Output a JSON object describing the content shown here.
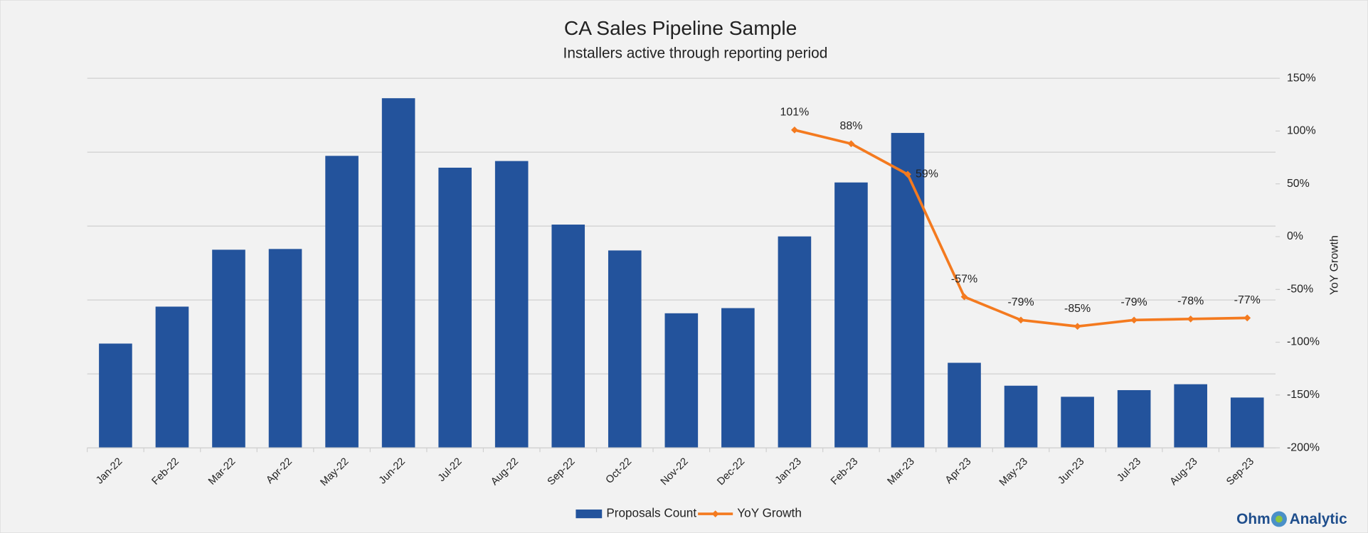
{
  "chart_data": {
    "type": "bar",
    "title": "CA Sales Pipeline Sample",
    "subtitle": "Installers active through reporting period",
    "categories": [
      "Jan-22",
      "Feb-22",
      "Mar-22",
      "Apr-22",
      "May-22",
      "Jun-22",
      "Jul-22",
      "Aug-22",
      "Sep-22",
      "Oct-22",
      "Nov-22",
      "Dec-22",
      "Jan-23",
      "Feb-23",
      "Mar-23",
      "Apr-23",
      "May-23",
      "Jun-23",
      "Jul-23",
      "Aug-23",
      "Sep-23"
    ],
    "series": [
      {
        "name": "Proposals Count",
        "type": "bar",
        "color": "#23539c",
        "values": [
          1.41,
          1.91,
          2.68,
          2.69,
          3.95,
          4.73,
          3.79,
          3.88,
          3.02,
          2.67,
          1.82,
          1.89,
          2.86,
          3.59,
          4.26,
          1.15,
          0.84,
          0.69,
          0.78,
          0.86,
          0.68
        ]
      },
      {
        "name": "YoY Growth",
        "type": "line",
        "axis": "y2",
        "color": "#f47a1f",
        "values": [
          null,
          null,
          null,
          null,
          null,
          null,
          null,
          null,
          null,
          null,
          null,
          null,
          101,
          88,
          59,
          -57,
          -79,
          -85,
          -79,
          -78,
          -77
        ],
        "value_labels": [
          null,
          null,
          null,
          null,
          null,
          null,
          null,
          null,
          null,
          null,
          null,
          null,
          "101%",
          "88%",
          "59%",
          "-57%",
          "-79%",
          "-85%",
          "-79%",
          "-78%",
          "-77%"
        ]
      }
    ],
    "ylim": [
      0,
      5
    ],
    "yticks": [
      0,
      1,
      2,
      3,
      4,
      5
    ],
    "grid": true,
    "y2label": "YoY Growth",
    "y2lim": [
      -200,
      150
    ],
    "y2ticks": [
      {
        "value": 150,
        "label": "150%"
      },
      {
        "value": 100,
        "label": "100%"
      },
      {
        "value": 50,
        "label": "50%"
      },
      {
        "value": 0,
        "label": "0%"
      },
      {
        "value": -50,
        "label": "-50%"
      },
      {
        "value": -100,
        "label": "-100%"
      },
      {
        "value": -150,
        "label": "-150%"
      },
      {
        "value": -200,
        "label": "-200%"
      }
    ],
    "legend": "bottom",
    "logo": [
      "Ohm",
      "Analytic"
    ]
  }
}
